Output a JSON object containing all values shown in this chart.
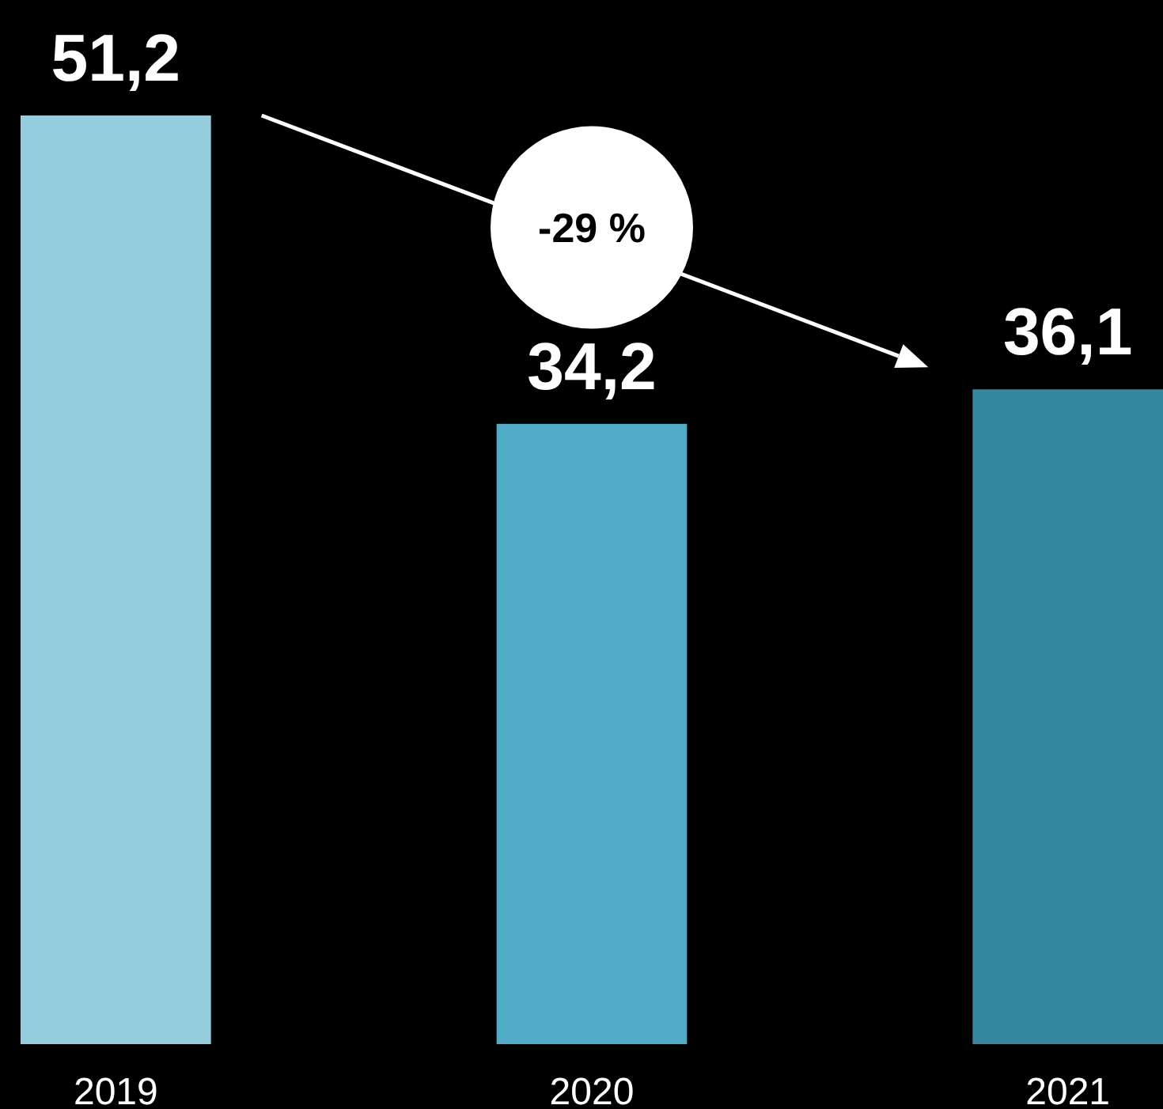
{
  "chart_data": {
    "type": "bar",
    "categories": [
      "2019",
      "2020",
      "2021"
    ],
    "values": [
      51.2,
      34.2,
      36.1
    ],
    "colors": [
      "#96cddd",
      "#4fabc6",
      "#35889f"
    ],
    "value_labels": [
      "51,2",
      "34,2",
      "36,1"
    ],
    "annotations": [
      "-29 %"
    ]
  }
}
